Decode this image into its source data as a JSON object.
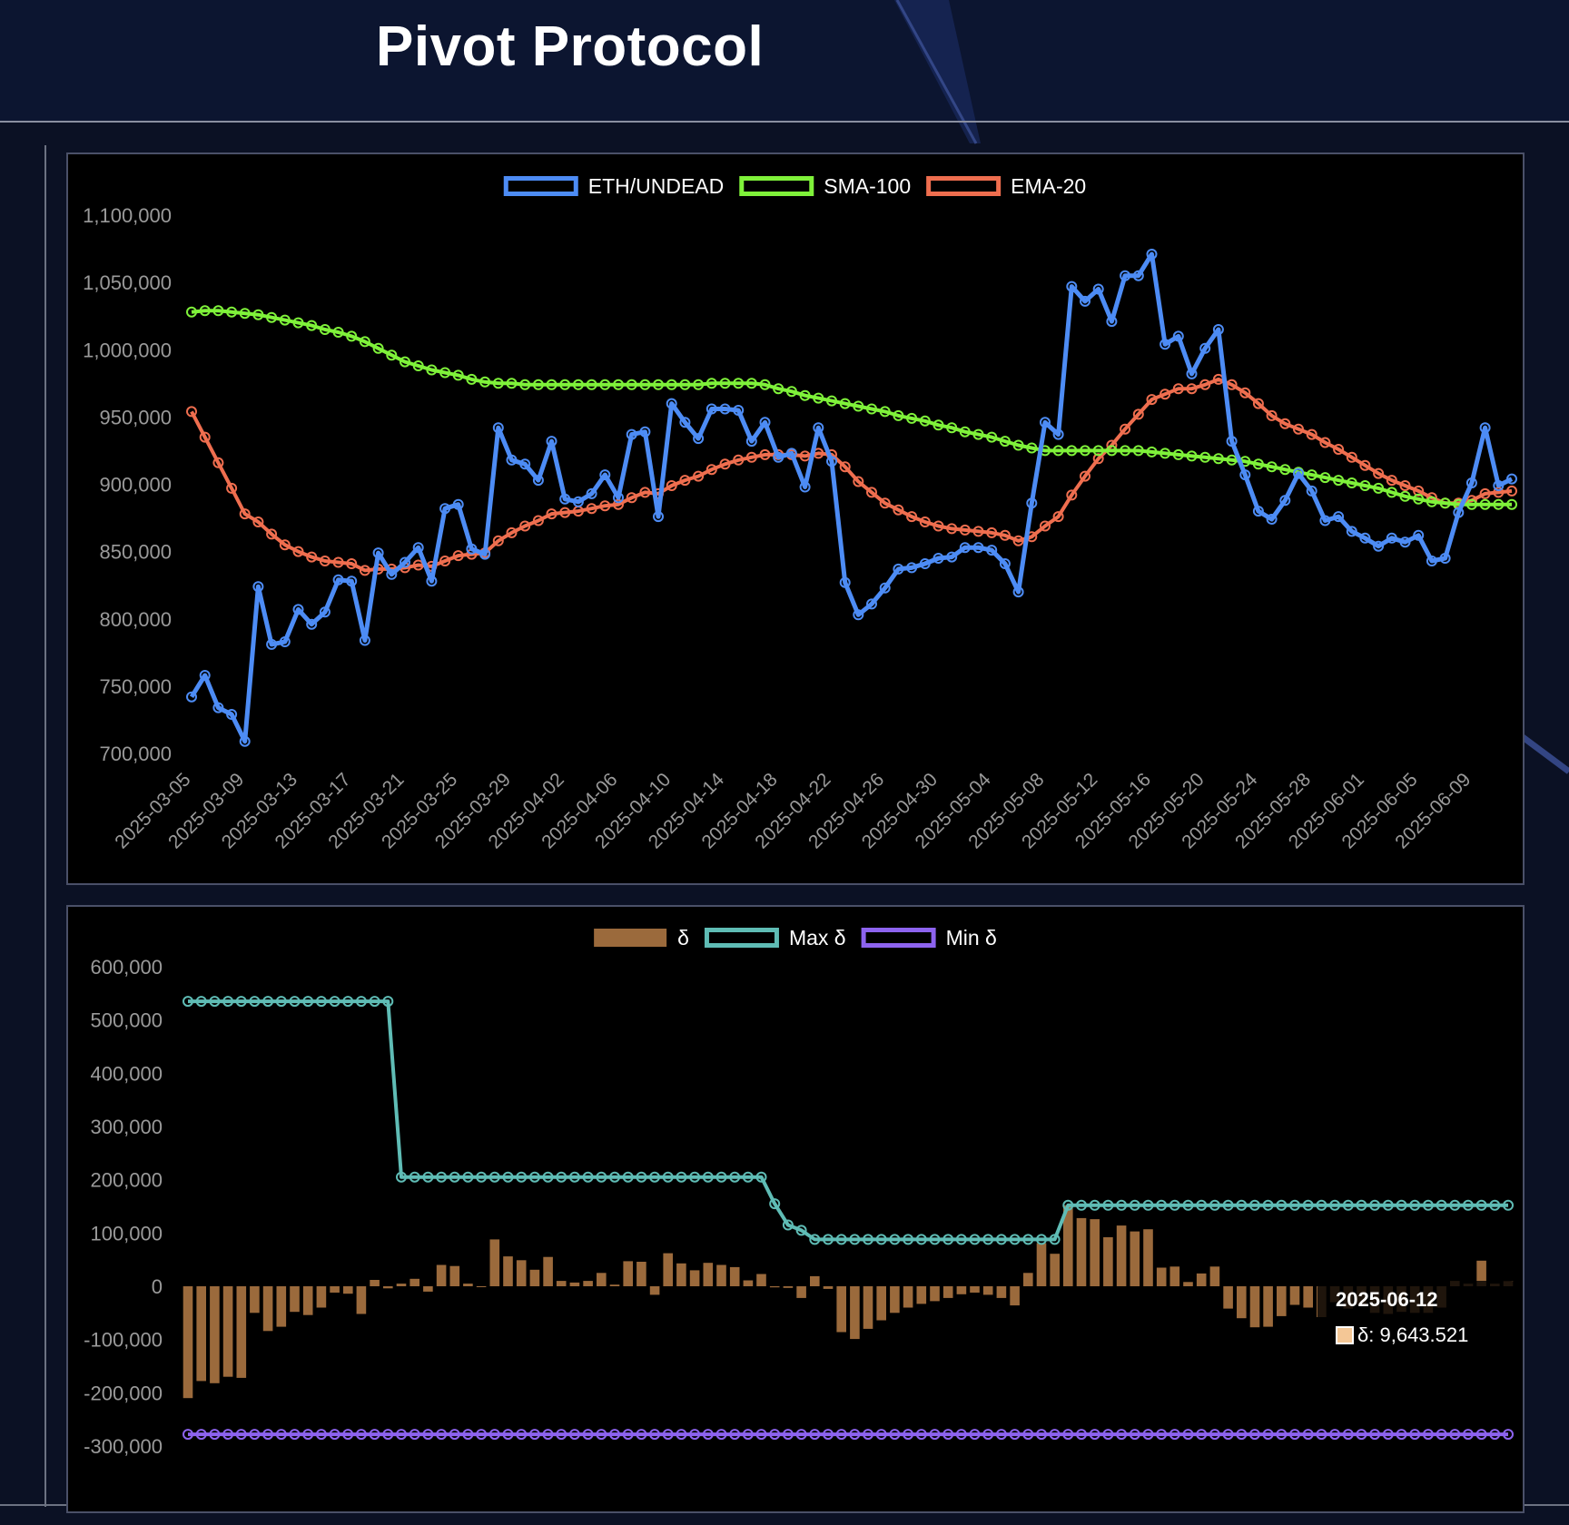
{
  "header": {
    "title": "Pivot Protocol"
  },
  "colors": {
    "background": "#0b1124",
    "panel": "#000000",
    "price": "#4d8cf5",
    "sma": "#7ff23a",
    "ema": "#ef6e4f",
    "delta": "#9b6a3c",
    "max_delta": "#5fbcb5",
    "min_delta": "#8d63ef",
    "axis_text": "#9a9a9a"
  },
  "tooltip": {
    "date": "2025-06-12",
    "series": "δ",
    "value": "9,643.521"
  },
  "chart_data": [
    {
      "type": "line",
      "legend_position": "top-center",
      "grid": false,
      "ylim": [
        700000,
        1100000
      ],
      "yticks": [
        "700,000",
        "750,000",
        "800,000",
        "850,000",
        "900,000",
        "950,000",
        "1,000,000",
        "1,050,000",
        "1,100,000"
      ],
      "yticks_values": [
        700000,
        750000,
        800000,
        850000,
        900000,
        950000,
        1000000,
        1050000,
        1100000
      ],
      "xticks": [
        "2025-03-05",
        "2025-03-09",
        "2025-03-13",
        "2025-03-17",
        "2025-03-21",
        "2025-03-25",
        "2025-03-29",
        "2025-04-02",
        "2025-04-06",
        "2025-04-10",
        "2025-04-14",
        "2025-04-18",
        "2025-04-22",
        "2025-04-26",
        "2025-04-30",
        "2025-05-04",
        "2025-05-08",
        "2025-05-12",
        "2025-05-16",
        "2025-05-20",
        "2025-05-24",
        "2025-05-28",
        "2025-06-01",
        "2025-06-05",
        "2025-06-09"
      ],
      "start_date": "2025-03-05",
      "series": [
        {
          "name": "ETH/UNDEAD",
          "values": [
            742000,
            758000,
            734000,
            729000,
            709000,
            824000,
            781000,
            783000,
            807000,
            796000,
            805000,
            829000,
            828000,
            784000,
            849000,
            833000,
            842000,
            853000,
            828000,
            882000,
            885000,
            852000,
            848000,
            942000,
            918000,
            915000,
            903000,
            932000,
            889000,
            887000,
            893000,
            907000,
            890000,
            937000,
            939000,
            876000,
            960000,
            946000,
            934000,
            956000,
            956000,
            955000,
            932000,
            946000,
            920000,
            923000,
            898000,
            942000,
            917000,
            827000,
            803000,
            811000,
            823000,
            837000,
            838000,
            841000,
            845000,
            846000,
            853000,
            853000,
            851000,
            841000,
            820000,
            886000,
            946000,
            937000,
            1047000,
            1036000,
            1045000,
            1021000,
            1055000,
            1055000,
            1071000,
            1004000,
            1010000,
            982000,
            1001000,
            1015000,
            932000,
            907000,
            880000,
            874000,
            888000,
            908000,
            895000,
            873000,
            876000,
            865000,
            860000,
            854000,
            860000,
            857000,
            862000,
            843000,
            845000,
            879000,
            901000,
            942000,
            899000,
            904000
          ]
        },
        {
          "name": "SMA-100",
          "values": [
            1028000,
            1029000,
            1029000,
            1028000,
            1027000,
            1026000,
            1024000,
            1022000,
            1020000,
            1018000,
            1015000,
            1013000,
            1010000,
            1006000,
            1001000,
            996000,
            991000,
            988000,
            985000,
            983000,
            981000,
            978000,
            976000,
            975000,
            975000,
            974000,
            974000,
            974000,
            974000,
            974000,
            974000,
            974000,
            974000,
            974000,
            974000,
            974000,
            974000,
            974000,
            974000,
            975000,
            975000,
            975000,
            975000,
            974000,
            971000,
            969000,
            966000,
            964000,
            962000,
            960000,
            958000,
            956000,
            954000,
            951000,
            949000,
            947000,
            944000,
            942000,
            939000,
            937000,
            935000,
            932000,
            929000,
            927000,
            925000,
            925000,
            925000,
            925000,
            925000,
            925000,
            925000,
            925000,
            924000,
            923000,
            922000,
            921000,
            920000,
            919000,
            918000,
            917000,
            915000,
            913000,
            911000,
            909000,
            907000,
            905000,
            903000,
            901000,
            899000,
            897000,
            894000,
            891000,
            889000,
            887000,
            886000,
            885000,
            885000,
            885000,
            885000,
            885000
          ]
        },
        {
          "name": "EMA-20",
          "values": [
            954000,
            935000,
            916000,
            897000,
            878000,
            872000,
            863000,
            855000,
            850000,
            846000,
            843000,
            842000,
            841000,
            836000,
            837000,
            837000,
            838000,
            840000,
            839000,
            843000,
            847000,
            848000,
            849000,
            858000,
            864000,
            869000,
            873000,
            878000,
            879000,
            880000,
            882000,
            884000,
            885000,
            890000,
            894000,
            893000,
            899000,
            903000,
            906000,
            911000,
            915000,
            918000,
            920000,
            922000,
            922000,
            922000,
            921000,
            923000,
            922000,
            913000,
            902000,
            894000,
            886000,
            881000,
            876000,
            872000,
            869000,
            867000,
            866000,
            865000,
            864000,
            862000,
            858000,
            861000,
            869000,
            876000,
            892000,
            906000,
            919000,
            929000,
            941000,
            952000,
            963000,
            967000,
            971000,
            971000,
            974000,
            978000,
            974000,
            968000,
            960000,
            951000,
            945000,
            941000,
            937000,
            931000,
            926000,
            920000,
            914000,
            908000,
            903000,
            899000,
            895000,
            890000,
            886000,
            886000,
            888000,
            893000,
            894000,
            895000
          ]
        }
      ]
    },
    {
      "type": "bar",
      "legend_position": "top-center",
      "grid": false,
      "ylim": [
        -300000,
        600000
      ],
      "yticks": [
        "-300,000",
        "-200,000",
        "-100,000",
        "0",
        "100,000",
        "200,000",
        "300,000",
        "400,000",
        "500,000",
        "600,000"
      ],
      "yticks_values": [
        -300000,
        -200000,
        -100000,
        0,
        100000,
        200000,
        300000,
        400000,
        500000,
        600000
      ],
      "series": [
        {
          "name": "δ",
          "values": [
            -210000,
            -178000,
            -182000,
            -170000,
            -172000,
            -50000,
            -84000,
            -76000,
            -48000,
            -54000,
            -40000,
            -12000,
            -14000,
            -52000,
            12000,
            -4000,
            5000,
            14000,
            -10000,
            40000,
            38000,
            5000,
            0,
            88000,
            56000,
            49000,
            31000,
            55000,
            10000,
            7000,
            10000,
            25000,
            3000,
            47000,
            46000,
            -16000,
            62000,
            43000,
            30000,
            44000,
            40000,
            36000,
            11000,
            23000,
            -2000,
            -3000,
            -22000,
            19000,
            -5000,
            -86000,
            -99000,
            -80000,
            -64000,
            -50000,
            -40000,
            -33000,
            -28000,
            -22000,
            -15000,
            -12000,
            -16000,
            -22000,
            -36000,
            25000,
            81000,
            61000,
            152000,
            128000,
            126000,
            92000,
            114000,
            103000,
            107000,
            35000,
            37000,
            8000,
            24000,
            37000,
            -42000,
            -60000,
            -77000,
            -76000,
            -56000,
            -35000,
            -40000,
            -58000,
            -30000,
            -42000,
            -36000,
            -50000,
            -52000,
            -48000,
            -50000,
            -50000,
            -40000,
            10000,
            5000,
            48000,
            5000,
            9643.521
          ]
        },
        {
          "name": "Max δ",
          "values": [
            535000,
            535000,
            535000,
            535000,
            535000,
            535000,
            535000,
            535000,
            535000,
            535000,
            535000,
            535000,
            535000,
            535000,
            535000,
            535000,
            205000,
            205000,
            205000,
            205000,
            205000,
            205000,
            205000,
            205000,
            205000,
            205000,
            205000,
            205000,
            205000,
            205000,
            205000,
            205000,
            205000,
            205000,
            205000,
            205000,
            205000,
            205000,
            205000,
            205000,
            205000,
            205000,
            205000,
            205000,
            155000,
            115000,
            105000,
            88000,
            88000,
            88000,
            88000,
            88000,
            88000,
            88000,
            88000,
            88000,
            88000,
            88000,
            88000,
            88000,
            88000,
            88000,
            88000,
            88000,
            88000,
            88000,
            152000,
            152000,
            152000,
            152000,
            152000,
            152000,
            152000,
            152000,
            152000,
            152000,
            152000,
            152000,
            152000,
            152000,
            152000,
            152000,
            152000,
            152000,
            152000,
            152000,
            152000,
            152000,
            152000,
            152000,
            152000,
            152000,
            152000,
            152000,
            152000,
            152000,
            152000,
            152000,
            152000,
            152000
          ]
        },
        {
          "name": "Min δ",
          "constant": -278000
        }
      ]
    }
  ]
}
